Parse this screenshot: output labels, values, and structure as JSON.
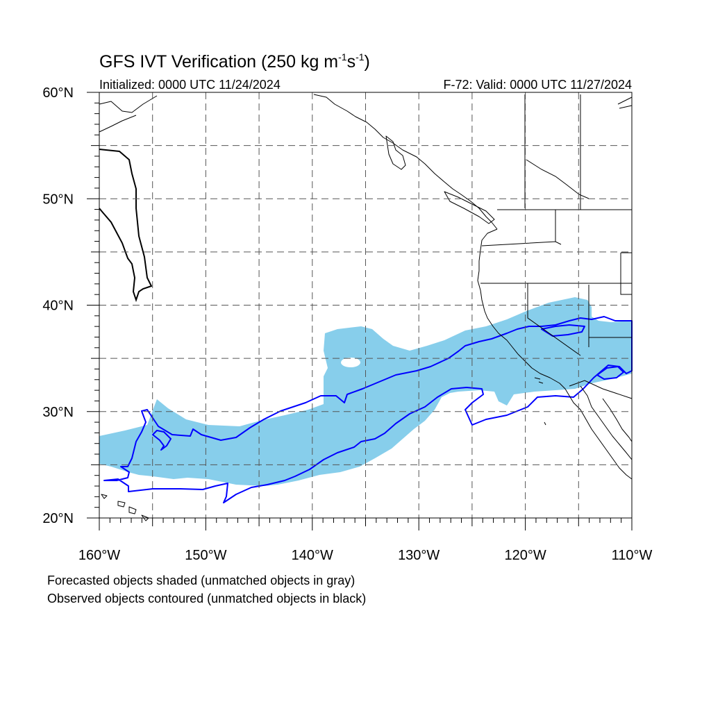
{
  "figure": {
    "title_prefix": "GFS IVT Verification (250 kg m",
    "title_unit_exp1": "-1",
    "title_mid": "s",
    "title_unit_exp2": "-1",
    "title_suffix": ")",
    "initialized": "Initialized: 0000 UTC 11/24/2024",
    "valid": "F-72: Valid: 0000 UTC 11/27/2024",
    "footnote_forecast": "Forecasted objects shaded (unmatched objects in gray)",
    "footnote_observed": "Observed objects contoured (unmatched objects in black)"
  },
  "map": {
    "lon_range": [
      -160,
      -110
    ],
    "lat_range": [
      20,
      60
    ],
    "lon_ticks": [
      -160,
      -150,
      -140,
      -130,
      -120,
      -110
    ],
    "lon_tick_labels": [
      "160°W",
      "150°W",
      "140°W",
      "130°W",
      "120°W",
      "110°W"
    ],
    "lat_ticks": [
      20,
      30,
      40,
      50,
      60
    ],
    "lat_tick_labels": [
      "20°N",
      "30°N",
      "40°N",
      "50°N",
      "60°N"
    ],
    "grid_interval_deg": 5,
    "grid": true,
    "colors": {
      "forecast_fill": "#87ceeb",
      "observed_contour": "#0000ff",
      "coast": "#000000",
      "grid": "#555555"
    }
  }
}
